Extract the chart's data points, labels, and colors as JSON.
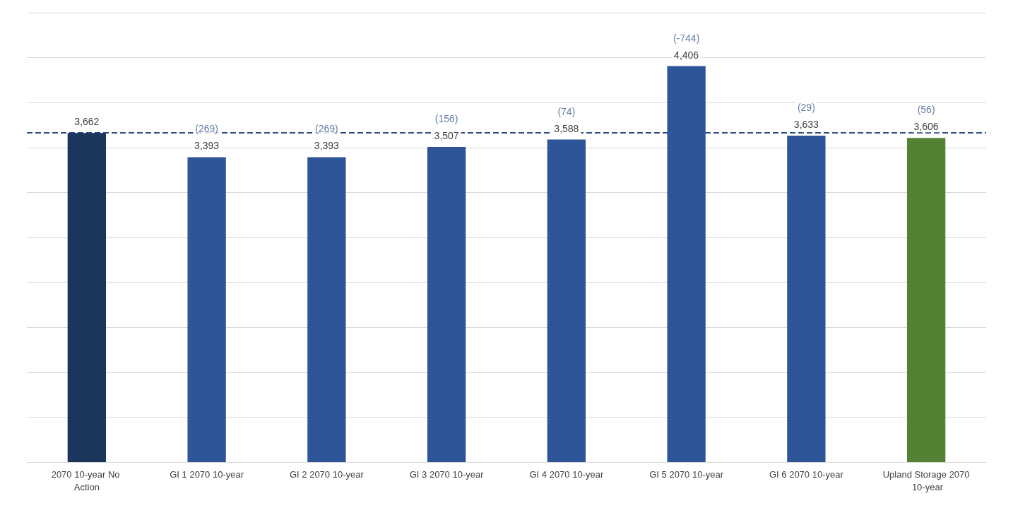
{
  "chart_data": {
    "type": "bar",
    "categories": [
      "2070 10-year No Action",
      "GI 1 2070 10-year",
      "GI 2 2070 10-year",
      "GI 3 2070 10-year",
      "GI 4 2070 10-year",
      "GI 5 2070 10-year",
      "GI 6 2070 10-year",
      "Upland Storage 2070 10-year"
    ],
    "values": [
      3662,
      3393,
      3393,
      3507,
      3588,
      4406,
      3633,
      3606
    ],
    "colors": [
      "#1b355c",
      "#2e5597",
      "#2e5597",
      "#2e5597",
      "#2e5597",
      "#2e5597",
      "#2e5597",
      "#548235"
    ],
    "value_labels": [
      "3,662",
      "3,393",
      "3,393",
      "3,507",
      "3,588",
      "4,406",
      "3,633",
      "3,606"
    ],
    "annotations": [
      {
        "text": "(269)",
        "x": "GI 1 2070 10-year",
        "y": 3393
      },
      {
        "text": "(269)",
        "x": "GI 2 2070 10-year",
        "y": 3393
      },
      {
        "text": "(156)",
        "x": "GI 3 2070 10-year",
        "y": 3507
      },
      {
        "text": "(74)",
        "x": "GI 4 2070 10-year",
        "y": 3588
      },
      {
        "text": "(-744)",
        "x": "GI 5 2070 10-year",
        "y": 4406
      },
      {
        "text": "(29)",
        "x": "GI 6 2070 10-year",
        "y": 3633
      },
      {
        "text": "(56)",
        "x": "Upland Storage 2070 10-year",
        "y": 3606
      }
    ],
    "ref_lines": [
      {
        "axis": "y",
        "value": 3662,
        "color": "#2f4f7f",
        "line_style": "dashed"
      }
    ],
    "ylim": [
      0,
      5000
    ],
    "yticks": [
      {
        "value": 0,
        "label": null
      },
      {
        "value": 500,
        "label": null
      },
      {
        "value": 1000,
        "label": null
      },
      {
        "value": 1500,
        "label": null
      },
      {
        "value": 2000,
        "label": null
      },
      {
        "value": 2500,
        "label": null
      },
      {
        "value": 3000,
        "label": null
      },
      {
        "value": 3500,
        "label": null
      },
      {
        "value": 4000,
        "label": null
      },
      {
        "value": 4500,
        "label": null
      },
      {
        "value": 5000,
        "label": null
      }
    ],
    "tick_labels": "x",
    "grid": "y"
  }
}
